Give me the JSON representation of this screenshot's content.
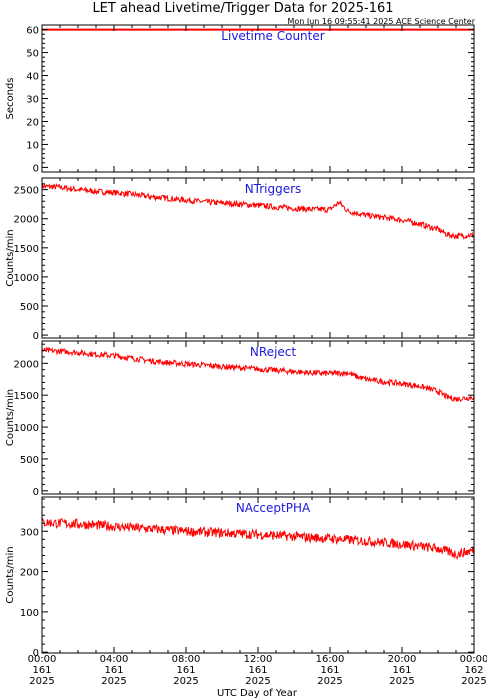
{
  "title": "LET ahead Livetime/Trigger Data for 2025-161",
  "credit": "Mon Jun 16 09:55:41 2025 ACE Science Center",
  "xlabel": "UTC Day of Year",
  "colors": {
    "series": "#ff0000",
    "panel_title": "#1a1adc",
    "axes": "#000000"
  },
  "x_ticks": [
    [
      "00:00",
      "161",
      "2025"
    ],
    [
      "04:00",
      "161",
      "2025"
    ],
    [
      "08:00",
      "161",
      "2025"
    ],
    [
      "12:00",
      "161",
      "2025"
    ],
    [
      "16:00",
      "161",
      "2025"
    ],
    [
      "20:00",
      "161",
      "2025"
    ],
    [
      "00:00",
      "162",
      "2025"
    ]
  ],
  "chart_data": [
    {
      "type": "line",
      "title": "Livetime Counter",
      "ylabel": "Seconds",
      "xlim": [
        0,
        24
      ],
      "ylim": [
        -2,
        62
      ],
      "yticks": [
        0,
        10,
        20,
        30,
        40,
        50,
        60
      ],
      "series": [
        {
          "x": [
            0,
            4,
            8,
            12,
            16,
            20,
            24
          ],
          "values": [
            60,
            60,
            60,
            60,
            60,
            60,
            60
          ]
        }
      ]
    },
    {
      "type": "line",
      "title": "NTriggers",
      "ylabel": "Counts/min",
      "xlim": [
        0,
        24
      ],
      "ylim": [
        -50,
        2700
      ],
      "yticks": [
        0,
        500,
        1000,
        1500,
        2000,
        2500
      ],
      "series": [
        {
          "x": [
            0,
            1,
            2,
            3,
            4,
            5,
            6,
            7,
            8,
            9,
            10,
            11,
            12,
            13,
            14,
            15,
            16,
            16.5,
            17,
            18,
            19,
            20,
            21,
            21.5,
            22,
            22.5,
            23,
            24
          ],
          "values": [
            2560,
            2540,
            2500,
            2470,
            2450,
            2420,
            2380,
            2350,
            2320,
            2290,
            2270,
            2250,
            2230,
            2200,
            2180,
            2160,
            2160,
            2280,
            2130,
            2060,
            2020,
            1980,
            1910,
            1860,
            1820,
            1730,
            1700,
            1720
          ],
          "noise": 50
        }
      ]
    },
    {
      "type": "line",
      "title": "NReject",
      "ylabel": "Counts/min",
      "xlim": [
        0,
        24
      ],
      "ylim": [
        -50,
        2350
      ],
      "yticks": [
        0,
        500,
        1000,
        1500,
        2000
      ],
      "series": [
        {
          "x": [
            0,
            1,
            2,
            3,
            4,
            5,
            6,
            7,
            8,
            9,
            10,
            11,
            12,
            13,
            14,
            15,
            16,
            17,
            17.5,
            18,
            19,
            20,
            21,
            21.5,
            22,
            22.5,
            23,
            24
          ],
          "values": [
            2200,
            2190,
            2170,
            2140,
            2120,
            2080,
            2040,
            2010,
            1990,
            1970,
            1950,
            1930,
            1910,
            1890,
            1870,
            1850,
            1840,
            1850,
            1790,
            1750,
            1710,
            1680,
            1640,
            1600,
            1560,
            1470,
            1440,
            1470
          ],
          "noise": 45
        }
      ]
    },
    {
      "type": "line",
      "title": "NAcceptPHA",
      "ylabel": "Counts/min",
      "xlim": [
        0,
        24
      ],
      "ylim": [
        -2,
        385
      ],
      "yticks": [
        0,
        100,
        200,
        300
      ],
      "series": [
        {
          "x": [
            0,
            2,
            4,
            6,
            8,
            10,
            12,
            14,
            16,
            18,
            20,
            22,
            23,
            24
          ],
          "values": [
            322,
            318,
            312,
            306,
            300,
            296,
            292,
            287,
            282,
            276,
            268,
            257,
            243,
            253
          ],
          "noise": 12
        }
      ]
    }
  ]
}
